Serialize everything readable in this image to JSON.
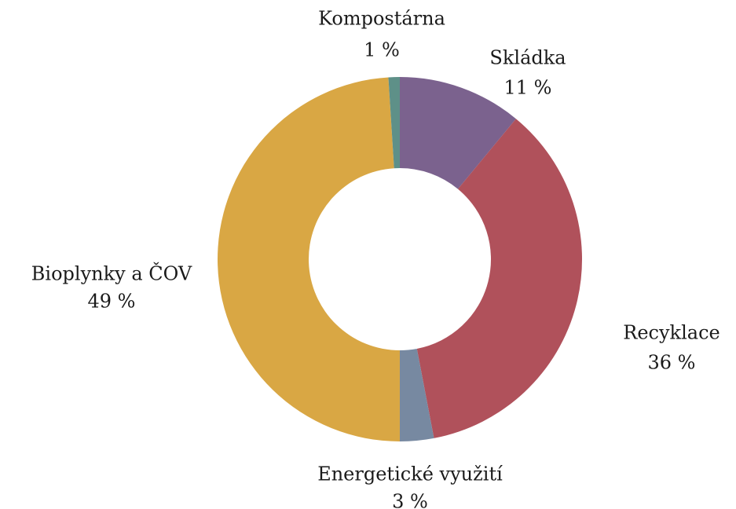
{
  "chart_data": {
    "type": "donut",
    "categories": [
      "Skládka",
      "Recyklace",
      "Energetické využití",
      "Bioplynky a ČOV",
      "Kompostárna"
    ],
    "values": [
      11,
      36,
      3,
      49,
      1
    ],
    "value_labels": [
      "11 %",
      "36 %",
      "3 %",
      "49 %",
      "1 %"
    ],
    "colors": [
      "#7b628e",
      "#b0515b",
      "#7789a1",
      "#d9a744",
      "#5e9088"
    ]
  }
}
